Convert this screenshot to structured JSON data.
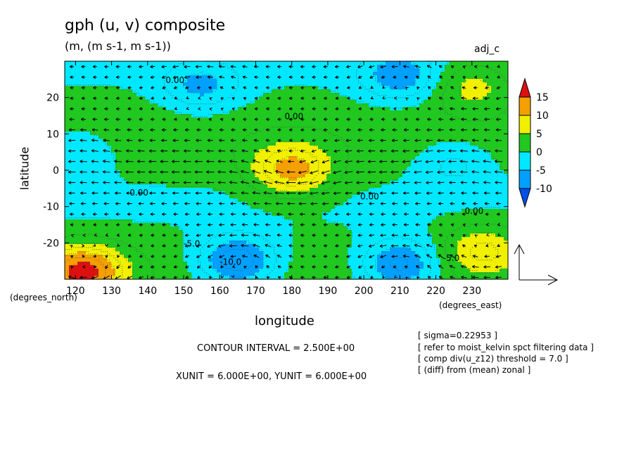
{
  "header": {
    "title": "gph (u, v) composite",
    "subtitle": "(m, (m s-1, m s-1))",
    "tag": "adj_c"
  },
  "axes": {
    "ylabel": "latitude",
    "xlabel": "longitude",
    "y_unit_note": "(degrees_north)",
    "x_unit_note": "(degrees_east)"
  },
  "footer": {
    "contour_interval": "CONTOUR INTERVAL = 2.500E+00",
    "units": "XUNIT = 6.000E+00, YUNIT = 6.000E+00",
    "notes": [
      "[ sigma=0.22953 ]",
      "[ refer to moist_kelvin spct filtering data ]",
      "[ comp div(u_z12) threshold = 7.0 ]",
      "[ (diff) from (mean) zonal ]"
    ]
  },
  "chart_data": {
    "type": "heatmap",
    "overlay": "vector",
    "title": "gph (u, v) composite",
    "subtitle": "(m, (m s-1, m s-1))",
    "xlabel": "longitude",
    "ylabel": "latitude",
    "xlim": [
      117,
      240
    ],
    "ylim": [
      -30,
      30
    ],
    "x_ticks": [
      120,
      130,
      140,
      150,
      160,
      170,
      180,
      190,
      200,
      210,
      220,
      230
    ],
    "y_ticks": [
      20,
      10,
      0,
      -10,
      -20
    ],
    "colorbar": {
      "levels": [
        15,
        10,
        5,
        0,
        -5,
        -10
      ],
      "colors": [
        "#dd1010",
        "#f5a000",
        "#f0f000",
        "#20c820",
        "#00e8ff",
        "#00a0ff",
        "#0050e8"
      ]
    },
    "contour_labels": [
      {
        "text": "0.00",
        "x": 145,
        "y": 24
      },
      {
        "text": "0.00",
        "x": 178,
        "y": 14
      },
      {
        "text": "0.00",
        "x": 135,
        "y": -7
      },
      {
        "text": "0.00",
        "x": 199,
        "y": -8
      },
      {
        "text": "0.00",
        "x": 228,
        "y": -12
      },
      {
        "text": "-5.0",
        "x": 150,
        "y": -21
      },
      {
        "text": "-10.0",
        "x": 160,
        "y": -26
      },
      {
        "text": "-5.0",
        "x": 222,
        "y": -25
      }
    ],
    "field_peaks": [
      {
        "x": 180,
        "y": 0,
        "value": 11
      },
      {
        "x": 230,
        "y": 23,
        "value": 6
      },
      {
        "x": 233,
        "y": -22,
        "value": 7
      },
      {
        "x": 122,
        "y": -28,
        "value": 15
      },
      {
        "x": 155,
        "y": 23,
        "value": -6
      },
      {
        "x": 210,
        "y": 26,
        "value": -7
      },
      {
        "x": 165,
        "y": -25,
        "value": -11
      },
      {
        "x": 210,
        "y": -26,
        "value": -10
      },
      {
        "x": 120,
        "y": 5,
        "value": -4
      },
      {
        "x": 225,
        "y": 2,
        "value": -4
      }
    ],
    "vector_reference": {
      "xunit": 6.0,
      "yunit": 6.0
    }
  }
}
